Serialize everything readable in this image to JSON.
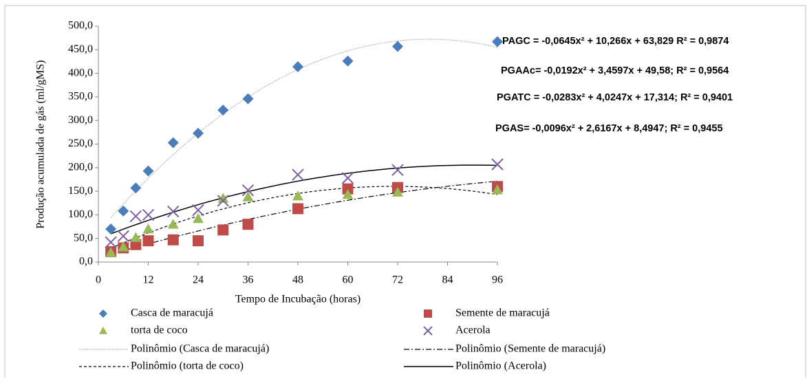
{
  "chart_data": {
    "type": "scatter",
    "y_label": "Produção acumulada de gás (ml/gMS)",
    "x_label": "Tempo de Incubação (horas)",
    "xlim": [
      0,
      96
    ],
    "xticks": [
      0,
      12,
      24,
      36,
      48,
      60,
      72,
      84,
      96
    ],
    "ylim": [
      0,
      500
    ],
    "yticks": [
      {
        "value": 0,
        "label": "0,0"
      },
      {
        "value": 50,
        "label": "50,0"
      },
      {
        "value": 100,
        "label": "100,0"
      },
      {
        "value": 150,
        "label": "150,0"
      },
      {
        "value": 200,
        "label": "200,0"
      },
      {
        "value": 250,
        "label": "250,0"
      },
      {
        "value": 300,
        "label": "300,0"
      },
      {
        "value": 350,
        "label": "350,0"
      },
      {
        "value": 400,
        "label": "400,0"
      },
      {
        "value": 450,
        "label": "450,0"
      },
      {
        "value": 500,
        "label": "500,0"
      }
    ],
    "x": [
      3,
      6,
      9,
      12,
      18,
      24,
      30,
      36,
      48,
      60,
      72,
      96
    ],
    "series": [
      {
        "name": "Casca de maracujá",
        "color": "#4a7ebb",
        "marker": "diamond",
        "values": [
          70,
          108,
          157,
          193,
          253,
          273,
          322,
          346,
          414,
          426,
          457,
          467
        ]
      },
      {
        "name": "Semente de maracujá",
        "color": "#be4b48",
        "marker": "square",
        "values": [
          22,
          30,
          37,
          45,
          47,
          45,
          68,
          80,
          113,
          155,
          158,
          160
        ]
      },
      {
        "name": "torta de coco",
        "color": "#98b954",
        "marker": "triangle",
        "values": [
          20,
          32,
          52,
          70,
          80,
          92,
          135,
          138,
          140,
          143,
          148,
          153
        ]
      },
      {
        "name": "Acerola",
        "color": "#7d60a0",
        "marker": "cross",
        "values": [
          42,
          55,
          97,
          100,
          107,
          110,
          130,
          152,
          185,
          178,
          195,
          207
        ]
      }
    ],
    "trendlines": [
      {
        "name": "Polinômio (Casca de maracujá)",
        "coefficients": [
          -0.0645,
          10.266,
          63.829
        ],
        "line_style": "dotted",
        "color": "#a6a6a6"
      },
      {
        "name": "Polinômio (Semente de maracujá)",
        "coefficients": [
          -0.0096,
          2.6167,
          8.4947
        ],
        "line_style": "dashdot",
        "color": "#000000"
      },
      {
        "name": "Polinômio (torta de coco)",
        "coefficients": [
          -0.0283,
          4.0247,
          17.314
        ],
        "line_style": "dashed",
        "color": "#000000"
      },
      {
        "name": "Polinômio (Acerola)",
        "coefficients": [
          -0.0192,
          3.4597,
          49.58
        ],
        "line_style": "solid",
        "color": "#000000"
      }
    ],
    "annotations": [
      "PAGC = -0,0645x² + 10,266x + 63,829 R² = 0,9874",
      "PGAAc= -0,0192x² + 3,4597x + 49,58; R² = 0,9564",
      "PGATC = -0,0283x² + 4,0247x + 17,314; R² = 0,9401",
      "PGAS= -0,0096x² + 2,6167x + 8,4947; R² = 0,9455"
    ]
  }
}
